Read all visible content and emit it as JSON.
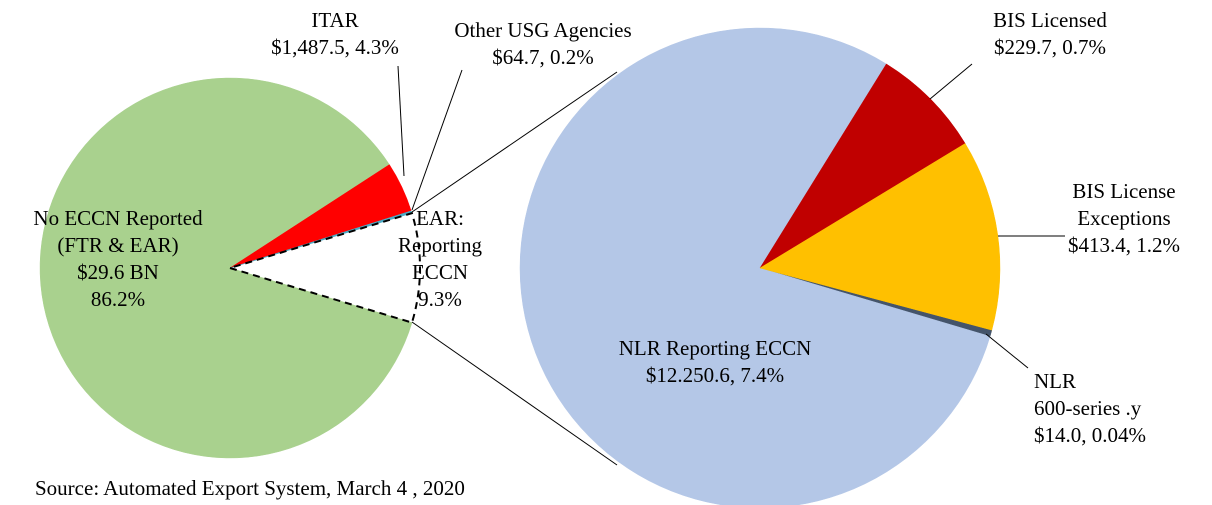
{
  "chart_data": [
    {
      "type": "pie",
      "categories": [
        [
          "EAR:",
          "Reporting",
          "ECCN"
        ],
        [
          "Other USG Agencies"
        ],
        [
          "ITAR"
        ],
        [
          "No ECCN Reported",
          "(FTR & EAR)"
        ]
      ],
      "values": [
        9.3,
        0.2,
        4.3,
        86.2
      ],
      "value_labels": [
        [
          "9.3%"
        ],
        [
          "$64.7, 0.2%"
        ],
        [
          "$1,487.5, 4.3%"
        ],
        [
          "$29.6 BN",
          "86.2%"
        ]
      ],
      "colors": [
        "none",
        "#4bacc6",
        "#ff0000",
        "#a9d18e"
      ]
    },
    {
      "type": "pie",
      "categories": [
        [
          "BIS License",
          "Exceptions"
        ],
        [
          "BIS Licensed"
        ],
        [
          "NLR Reporting ECCN"
        ],
        [
          "NLR",
          "600-series .y"
        ]
      ],
      "values": [
        1.2,
        0.7,
        7.4,
        0.04
      ],
      "value_labels": [
        [
          "$413.4, 1.2%"
        ],
        [
          "$229.7, 0.7%"
        ],
        [
          "$12.250.6, 7.4%"
        ],
        [
          "$14.0, 0.04%"
        ]
      ],
      "colors": [
        "#ffc000",
        "#c00000",
        "#b4c7e7",
        "#44546a"
      ]
    }
  ],
  "source": "Source: Automated Export System, March 4 , 2020"
}
